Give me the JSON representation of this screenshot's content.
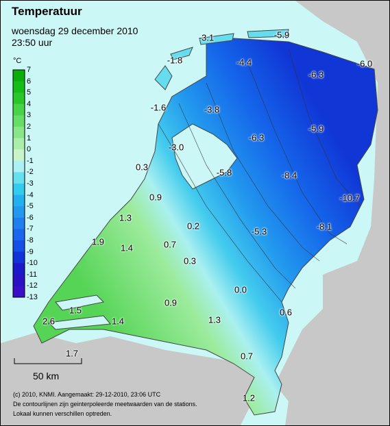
{
  "header": {
    "title": "Temperatuur",
    "subtitle": "woensdag 29 december 2010",
    "time": "23:50 uur"
  },
  "legend": {
    "unit": "°C",
    "ticks": [
      "7",
      "6",
      "5",
      "4",
      "3",
      "2",
      "1",
      "0",
      "-1",
      "-2",
      "-3",
      "-4",
      "-5",
      "-6",
      "-7",
      "-8",
      "-9",
      "-10",
      "-11",
      "-12",
      "-13"
    ],
    "colors": [
      "#0aad0a",
      "#16bd16",
      "#2ac72a",
      "#47d447",
      "#66dd66",
      "#88e588",
      "#aaeeaa",
      "#c8f5c8",
      "#aaf0f5",
      "#66e0ee",
      "#33ccee",
      "#22b0ee",
      "#2299ee",
      "#1f7fee",
      "#1a66ee",
      "#144ee6",
      "#1034d8",
      "#1a1ac8",
      "#2a12c4",
      "#3a0fc8",
      "#5510cc"
    ]
  },
  "stations": [
    {
      "value": "-3.1"
    },
    {
      "value": "-5.9"
    },
    {
      "value": "-1.8"
    },
    {
      "value": "-4.4"
    },
    {
      "value": "-6.0"
    },
    {
      "value": "-6.3"
    },
    {
      "value": "-1.6"
    },
    {
      "value": "-3.8"
    },
    {
      "value": "-5.9"
    },
    {
      "value": "-6.3"
    },
    {
      "value": "-3.0"
    },
    {
      "value": "0.3"
    },
    {
      "value": "-5.8"
    },
    {
      "value": "-8.4"
    },
    {
      "value": "-10.7"
    },
    {
      "value": "0.9"
    },
    {
      "value": "1.3"
    },
    {
      "value": "0.2"
    },
    {
      "value": "-5.3"
    },
    {
      "value": "-8.1"
    },
    {
      "value": "1.9"
    },
    {
      "value": "1.4"
    },
    {
      "value": "0.7"
    },
    {
      "value": "0.3"
    },
    {
      "value": "0.0"
    },
    {
      "value": "1.5"
    },
    {
      "value": "0.9"
    },
    {
      "value": "0.6"
    },
    {
      "value": "1.4"
    },
    {
      "value": "1.3"
    },
    {
      "value": "2.6"
    },
    {
      "value": "1.7"
    },
    {
      "value": "0.7"
    },
    {
      "value": "1.2"
    }
  ],
  "scale": {
    "label": "50 km"
  },
  "footer": {
    "line1": "(c) 2010, KNMI. Aangemaakt: 29-12-2010, 23:06 UTC",
    "line2": "De contourlijnen zijn geinterpoleerde meetwaarden van de stations.",
    "line3": "Lokaal kunnen verschillen optreden."
  },
  "colors": {
    "sea": "#ccf7f7",
    "foreign_land": "#c8c8c8"
  }
}
